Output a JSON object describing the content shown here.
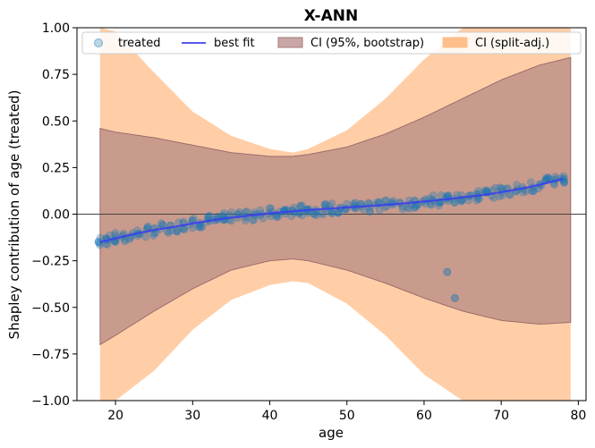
{
  "chart_data": {
    "type": "scatter",
    "title": "X-ANN",
    "xlabel": "age",
    "ylabel": "Shapley contribution of age (treated)",
    "xlim": [
      15,
      81
    ],
    "ylim": [
      -1.0,
      1.0
    ],
    "xticks": [
      20,
      30,
      40,
      50,
      60,
      70,
      80
    ],
    "yticks": [
      -1.0,
      -0.75,
      -0.5,
      -0.25,
      0.0,
      0.25,
      0.5,
      0.75,
      1.0
    ],
    "ytick_labels": [
      "−1.00",
      "−0.75",
      "−0.50",
      "−0.25",
      "0.00",
      "0.25",
      "0.50",
      "0.75",
      "1.00"
    ],
    "xtick_labels": [
      "20",
      "30",
      "40",
      "50",
      "60",
      "70",
      "80"
    ],
    "zero_line": 0.0,
    "legend": {
      "placement": "top",
      "entries": [
        "treated",
        "best fit",
        "CI (95%, bootstrap)",
        "CI (split-adj.)"
      ]
    },
    "colors": {
      "scatter": "#1f77b4",
      "fit": "#3b3bf0",
      "ci_bootstrap": "#a57a7a",
      "ci_split": "#ffbe8a"
    },
    "best_fit": {
      "x": [
        18,
        20,
        22,
        25,
        28,
        30,
        33,
        35,
        38,
        40,
        43,
        45,
        48,
        50,
        53,
        55,
        58,
        60,
        63,
        65,
        68,
        70,
        73,
        75,
        78
      ],
      "y": [
        -0.15,
        -0.13,
        -0.11,
        -0.085,
        -0.065,
        -0.05,
        -0.03,
        -0.018,
        -0.005,
        0.005,
        0.015,
        0.022,
        0.03,
        0.036,
        0.044,
        0.05,
        0.06,
        0.068,
        0.08,
        0.09,
        0.105,
        0.118,
        0.14,
        0.158,
        0.19
      ]
    },
    "ci_bootstrap": {
      "x": [
        18,
        20,
        25,
        30,
        35,
        40,
        43,
        45,
        50,
        55,
        60,
        65,
        70,
        75,
        79
      ],
      "upper": [
        0.46,
        0.44,
        0.41,
        0.37,
        0.33,
        0.31,
        0.31,
        0.32,
        0.36,
        0.43,
        0.52,
        0.62,
        0.72,
        0.8,
        0.84
      ],
      "lower": [
        -0.7,
        -0.65,
        -0.52,
        -0.4,
        -0.3,
        -0.25,
        -0.24,
        -0.25,
        -0.3,
        -0.37,
        -0.45,
        -0.52,
        -0.57,
        -0.59,
        -0.58
      ]
    },
    "ci_split": {
      "x": [
        18,
        20,
        25,
        30,
        35,
        40,
        43,
        45,
        50,
        55,
        60,
        65,
        70,
        75,
        79
      ],
      "upper": [
        1.0,
        0.98,
        0.76,
        0.55,
        0.42,
        0.35,
        0.33,
        0.35,
        0.45,
        0.62,
        0.83,
        1.0,
        1.0,
        1.0,
        1.0
      ],
      "lower": [
        -1.0,
        -1.0,
        -0.84,
        -0.62,
        -0.46,
        -0.38,
        -0.36,
        -0.37,
        -0.48,
        -0.65,
        -0.86,
        -1.0,
        -1.0,
        -1.0,
        -1.0
      ]
    },
    "outliers": [
      {
        "x": 63,
        "y": -0.31
      },
      {
        "x": 64,
        "y": -0.45
      }
    ],
    "scatter_x_range": [
      18,
      78
    ],
    "scatter_spread": 0.03
  }
}
